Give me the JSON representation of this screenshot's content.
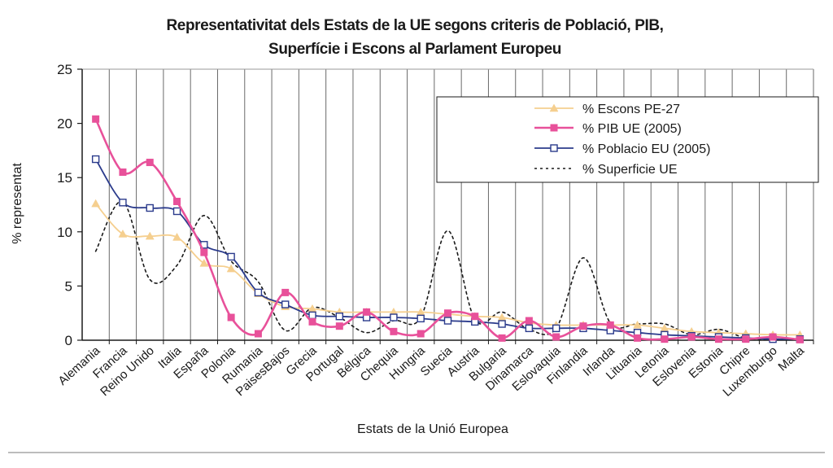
{
  "chart_data": {
    "type": "line",
    "title_lines": [
      "Representativitat dels Estats de la UE segons criteris de Població, PIB,",
      "Superfície i Escons al Parlament Europeu"
    ],
    "xlabel": "Estats de la Unió Europea",
    "ylabel": "% representat",
    "ylim": [
      0,
      25
    ],
    "yticks": [
      0,
      5,
      10,
      15,
      20,
      25
    ],
    "grid": "vertical",
    "legend_position": "top-right",
    "categories": [
      "Alemania",
      "Francia",
      "Reino Unido",
      "Italia",
      "España",
      "Polonia",
      "Rumania",
      "PaisesBajos",
      "Grecia",
      "Portugal",
      "Bélgica",
      "Chequia",
      "Hungria",
      "Suecia",
      "Austria",
      "Bulgaria",
      "Dinamarca",
      "Eslovaquia",
      "Finlandia",
      "Irlanda",
      "Lituania",
      "Letonia",
      "Eslovenia",
      "Estonia",
      "Chipre",
      "Luxemburgo",
      "Malta"
    ],
    "series": [
      {
        "name": "% Escons PE-27",
        "color": "#f5cf8f",
        "marker": "triangle",
        "dashed": false,
        "values": [
          12.6,
          9.8,
          9.6,
          9.5,
          7.1,
          6.6,
          4.3,
          3.1,
          2.9,
          2.6,
          2.6,
          2.6,
          2.6,
          2.4,
          2.2,
          2.1,
          1.6,
          1.4,
          1.4,
          1.4,
          1.4,
          1.1,
          0.8,
          0.7,
          0.6,
          0.5,
          0.5
        ]
      },
      {
        "name": "% PIB UE (2005)",
        "color": "#e8519a",
        "marker": "square-filled",
        "dashed": false,
        "values": [
          20.4,
          15.5,
          16.4,
          12.8,
          8.1,
          2.1,
          0.6,
          4.4,
          1.7,
          1.3,
          2.6,
          0.8,
          0.6,
          2.5,
          2.2,
          0.2,
          1.8,
          0.3,
          1.3,
          1.4,
          0.2,
          0.1,
          0.3,
          0.1,
          0.1,
          0.3,
          0.05
        ]
      },
      {
        "name": "% Poblacio EU (2005)",
        "color": "#2b3b8c",
        "marker": "square-open",
        "dashed": false,
        "values": [
          16.7,
          12.7,
          12.2,
          11.9,
          8.8,
          7.7,
          4.4,
          3.3,
          2.3,
          2.2,
          2.1,
          2.1,
          2.0,
          1.8,
          1.7,
          1.5,
          1.1,
          1.1,
          1.1,
          0.9,
          0.7,
          0.5,
          0.4,
          0.3,
          0.2,
          0.1,
          0.1
        ]
      },
      {
        "name": "% Superficie UE",
        "color": "#1a1a1a",
        "marker": "none",
        "dashed": true,
        "values": [
          8.2,
          12.8,
          5.6,
          6.9,
          11.5,
          7.3,
          5.4,
          0.9,
          3.0,
          2.1,
          0.7,
          1.8,
          2.1,
          10.1,
          1.9,
          2.6,
          1.0,
          1.1,
          7.6,
          1.6,
          1.5,
          1.5,
          0.5,
          1.0,
          0.2,
          0.1,
          0.1
        ]
      }
    ]
  }
}
